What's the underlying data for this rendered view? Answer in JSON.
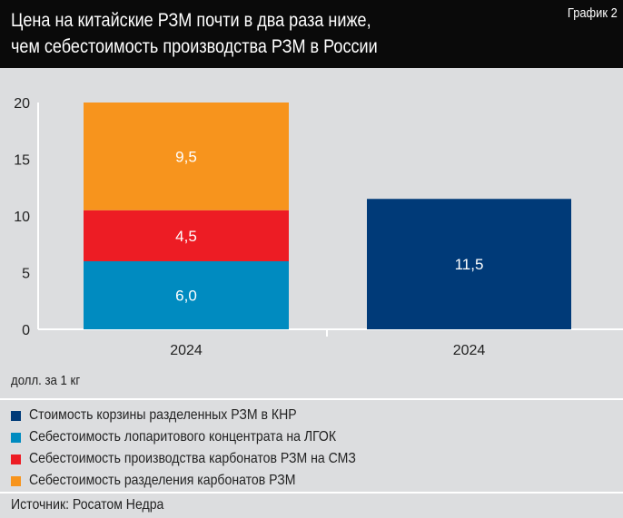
{
  "header": {
    "title_line1": "Цена на китайские РЗМ почти в два раза ниже,",
    "title_line2": "чем себестоимость производства РЗМ в России",
    "tag": "График 2"
  },
  "unit_label": "долл. за 1 кг",
  "source": "Источник: Росатом Недра",
  "chart_data": {
    "type": "bar",
    "stacked": true,
    "title": "Цена на китайские РЗМ почти в два раза ниже, чем себестоимость производства РЗМ в России",
    "ylabel": "долл. за 1 кг",
    "ylim": [
      0,
      20
    ],
    "yticks": [
      0,
      5,
      10,
      15,
      20
    ],
    "grid": false,
    "legend_placement": "bottom",
    "categories": [
      "2024",
      "2024"
    ],
    "series": [
      {
        "name": "Стоимость корзины разделенных РЗМ в КНР",
        "color": "#003a78",
        "values": [
          0,
          11.5
        ],
        "labels": [
          "",
          "11,5"
        ]
      },
      {
        "name": "Себестоимость лопаритового концентрата на ЛГОК",
        "color": "#008bc0",
        "values": [
          6.0,
          0
        ],
        "labels": [
          "6,0",
          ""
        ]
      },
      {
        "name": "Себестоимость производства карбонатов РЗМ на СМЗ",
        "color": "#ed1c24",
        "values": [
          4.5,
          0
        ],
        "labels": [
          "4,5",
          ""
        ]
      },
      {
        "name": "Себестоимость разделения карбонатов РЗМ",
        "color": "#f7941d",
        "values": [
          9.5,
          0
        ],
        "labels": [
          "9,5",
          ""
        ]
      }
    ]
  }
}
